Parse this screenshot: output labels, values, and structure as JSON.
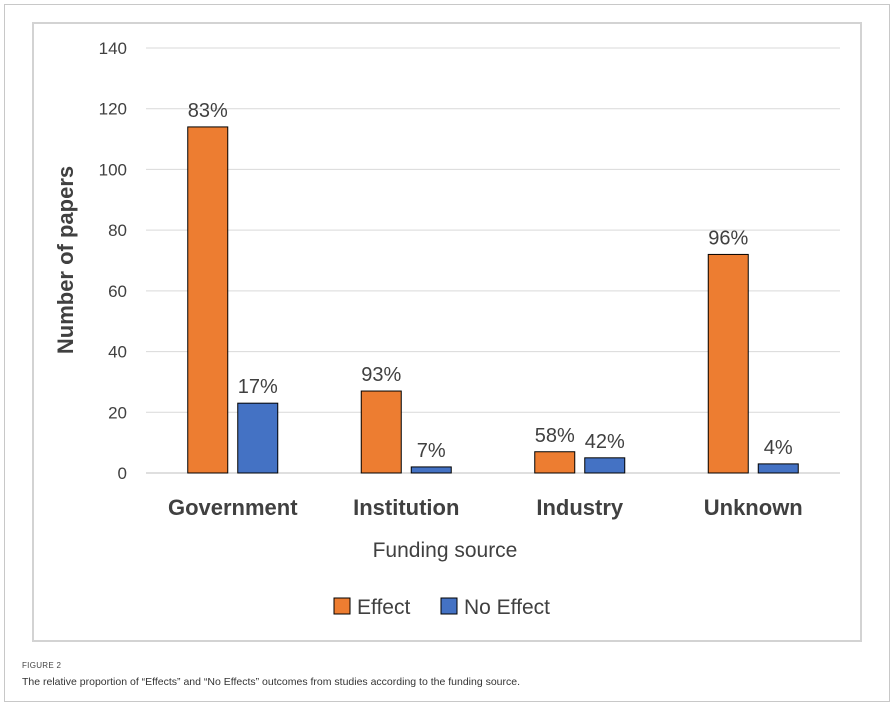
{
  "figure": {
    "label": "FIGURE 2",
    "caption": "The relative proportion of “Effects” and “No Effects” outcomes from studies according to the funding source."
  },
  "chart_data": {
    "type": "bar",
    "title": "",
    "xlabel": "Funding source",
    "ylabel": "Number of papers",
    "ylim": [
      0,
      140
    ],
    "yticks": [
      0,
      20,
      40,
      60,
      80,
      100,
      120,
      140
    ],
    "grid": true,
    "legend_position": "bottom",
    "categories": [
      "Government",
      "Institution",
      "Industry",
      "Unknown"
    ],
    "series": [
      {
        "name": "Effect",
        "color": "#ed7d31",
        "values": [
          114,
          27,
          7,
          72
        ],
        "data_labels": [
          "83%",
          "93%",
          "58%",
          "96%"
        ]
      },
      {
        "name": "No Effect",
        "color": "#4472c4",
        "values": [
          23,
          2,
          5,
          3
        ],
        "data_labels": [
          "17%",
          "7%",
          "42%",
          "4%"
        ]
      }
    ]
  }
}
